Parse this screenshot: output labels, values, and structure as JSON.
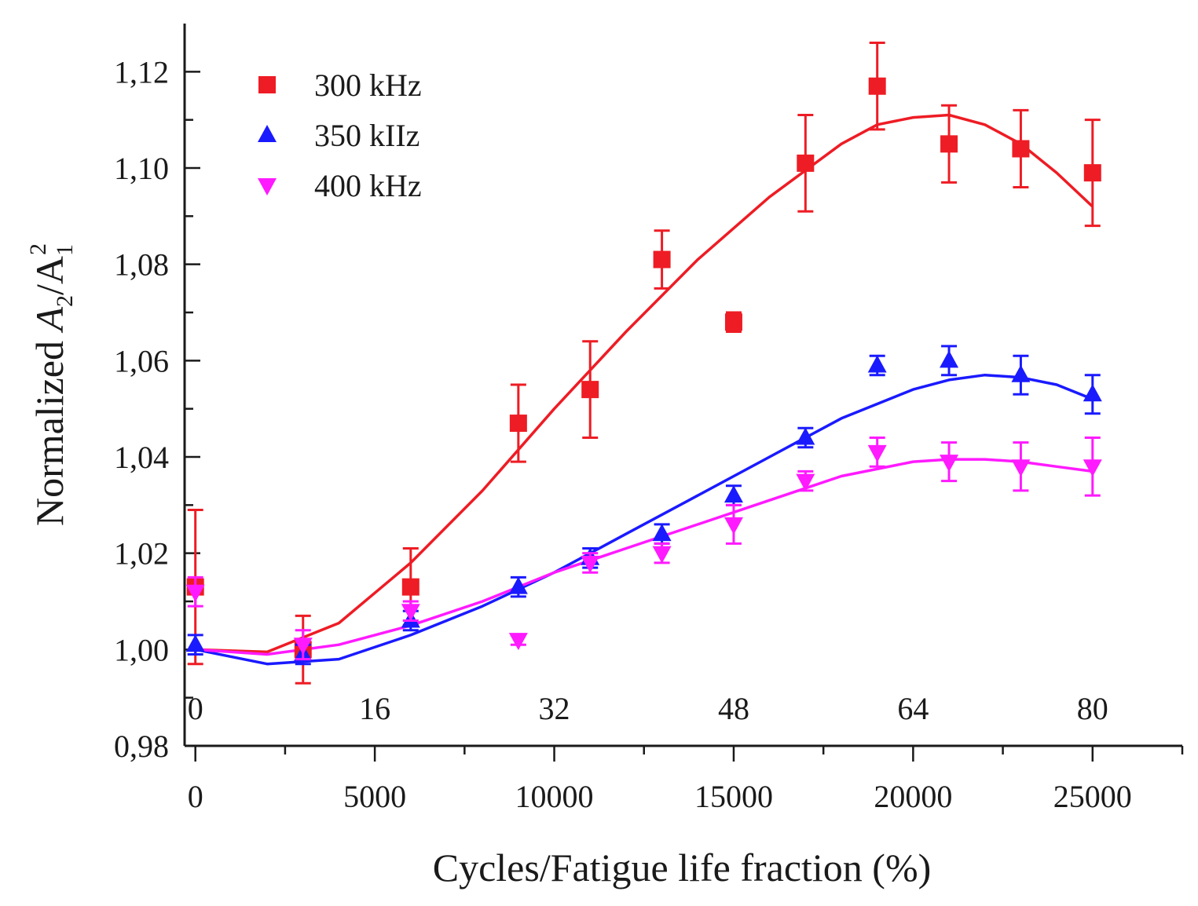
{
  "chart_data": {
    "type": "scatter",
    "xlabel": "Cycles/Fatigue life fraction (%)",
    "ylabel_parts": [
      "Normalized ",
      "A",
      "2",
      "/A",
      "1",
      "2"
    ],
    "xlim": [
      -300,
      27500
    ],
    "ylim": [
      0.98,
      1.13
    ],
    "x_ticks": [
      0,
      5000,
      10000,
      15000,
      20000,
      25000
    ],
    "x_tick_labels": [
      "0",
      "5000",
      "10000",
      "15000",
      "20000",
      "25000"
    ],
    "x_minor_ticks": [
      2500,
      7500,
      12500,
      17500,
      22500,
      27500
    ],
    "y_ticks": [
      0.98,
      1.0,
      1.02,
      1.04,
      1.06,
      1.08,
      1.1,
      1.12
    ],
    "y_tick_labels": [
      "0,98",
      "1,00",
      "1,02",
      "1,04",
      "1,06",
      "1,08",
      "1,10",
      "1,12"
    ],
    "y_minor_ticks": [
      0.99,
      1.01,
      1.03,
      1.05,
      1.07,
      1.09,
      1.11
    ],
    "secondary_x_labels": [
      {
        "x": 0,
        "label": "0"
      },
      {
        "x": 5000,
        "label": "16"
      },
      {
        "x": 10000,
        "label": "32"
      },
      {
        "x": 15000,
        "label": "48"
      },
      {
        "x": 20000,
        "label": "64"
      },
      {
        "x": 25000,
        "label": "80"
      }
    ],
    "legend_position": "top-left",
    "series": [
      {
        "name": "300 kHz",
        "color": "#ee1c24",
        "marker": "square",
        "x": [
          0,
          3000,
          6000,
          9000,
          11000,
          13000,
          15000,
          17000,
          19000,
          21000,
          23000,
          25000
        ],
        "y": [
          1.013,
          1.0,
          1.013,
          1.047,
          1.054,
          1.081,
          1.068,
          1.101,
          1.117,
          1.105,
          1.104,
          1.099
        ],
        "err": [
          0.016,
          0.007,
          0.008,
          0.008,
          0.01,
          0.006,
          0.002,
          0.01,
          0.009,
          0.008,
          0.008,
          0.011
        ],
        "fit_x": [
          0,
          2000,
          4000,
          6000,
          8000,
          10000,
          12000,
          14000,
          16000,
          18000,
          19000,
          20000,
          21000,
          22000,
          23000,
          24000,
          25000
        ],
        "fit_y": [
          1.0,
          0.9995,
          1.0055,
          1.018,
          1.033,
          1.05,
          1.066,
          1.081,
          1.094,
          1.105,
          1.109,
          1.1105,
          1.111,
          1.109,
          1.105,
          1.099,
          1.092
        ]
      },
      {
        "name": "350 kIIz",
        "color": "#1a1aff",
        "marker": "triangle-up",
        "x": [
          0,
          3000,
          6000,
          9000,
          11000,
          13000,
          15000,
          17000,
          19000,
          21000,
          23000,
          25000
        ],
        "y": [
          1.001,
          0.999,
          1.006,
          1.013,
          1.019,
          1.024,
          1.032,
          1.044,
          1.059,
          1.06,
          1.057,
          1.053
        ],
        "err": [
          0.002,
          0.002,
          0.002,
          0.002,
          0.002,
          0.002,
          0.002,
          0.002,
          0.002,
          0.003,
          0.004,
          0.004
        ],
        "fit_x": [
          0,
          2000,
          4000,
          6000,
          8000,
          10000,
          12000,
          14000,
          16000,
          18000,
          20000,
          21000,
          22000,
          23000,
          24000,
          25000
        ],
        "fit_y": [
          1.0,
          0.997,
          0.998,
          1.003,
          1.009,
          1.016,
          1.024,
          1.032,
          1.04,
          1.048,
          1.054,
          1.056,
          1.057,
          1.0565,
          1.055,
          1.052
        ]
      },
      {
        "name": "400 kHz",
        "color": "#ff1aff",
        "marker": "triangle-down",
        "x": [
          0,
          3000,
          6000,
          9000,
          11000,
          13000,
          15000,
          17000,
          19000,
          21000,
          23000,
          25000
        ],
        "y": [
          1.012,
          1.001,
          1.008,
          1.002,
          1.018,
          1.02,
          1.026,
          1.035,
          1.041,
          1.039,
          1.038,
          1.038
        ],
        "err": [
          0.003,
          0.003,
          0.002,
          0.001,
          0.002,
          0.002,
          0.004,
          0.002,
          0.003,
          0.004,
          0.005,
          0.006
        ],
        "fit_x": [
          0,
          2000,
          4000,
          6000,
          8000,
          10000,
          12000,
          14000,
          16000,
          18000,
          20000,
          21000,
          22000,
          23000,
          24000,
          25000
        ],
        "fit_y": [
          1.0,
          0.999,
          1.001,
          1.005,
          1.01,
          1.016,
          1.021,
          1.026,
          1.031,
          1.036,
          1.039,
          1.0395,
          1.0395,
          1.039,
          1.038,
          1.037
        ]
      }
    ]
  }
}
